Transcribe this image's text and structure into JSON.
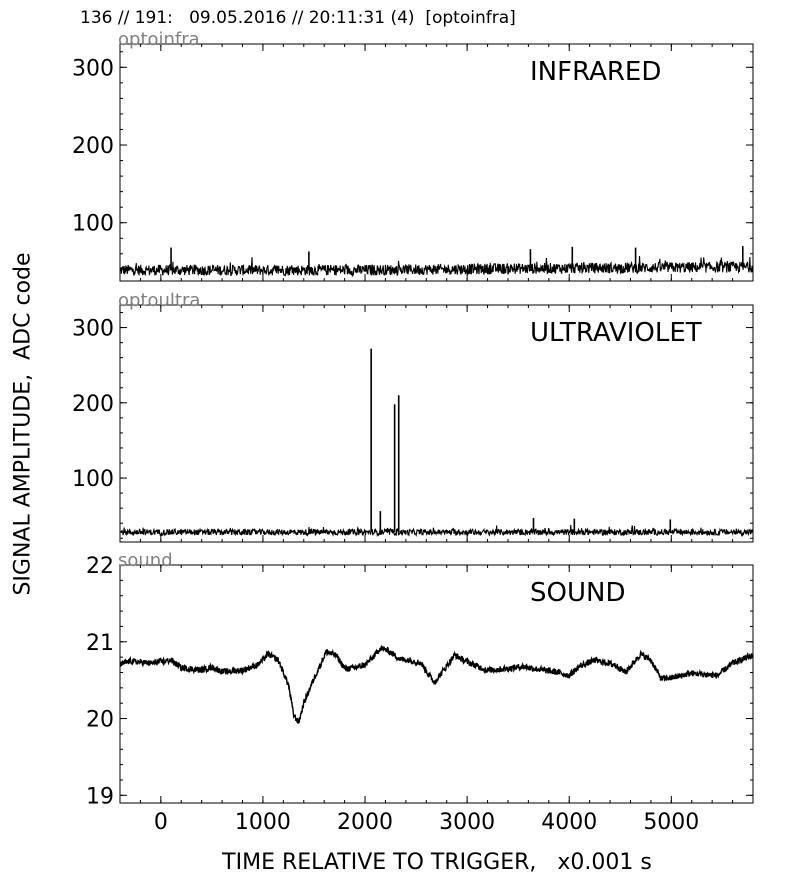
{
  "header": {
    "text": "136 // 191:   09.05.2016 // 20:11:31 (4)  [optoinfra]"
  },
  "figure": {
    "ylabel": "SIGNAL AMPLITUDE,  ADC code",
    "xlabel": "TIME RELATIVE TO TRIGGER,   x0.001 s"
  },
  "chart_data": [
    {
      "type": "line",
      "source_label": "optoinfra",
      "title": "INFRARED",
      "xlim": [
        -400,
        5800
      ],
      "ylim": [
        25,
        330
      ],
      "xticks": [
        0,
        1000,
        2000,
        3000,
        4000,
        5000
      ],
      "yticks": [
        100,
        200,
        300
      ],
      "show_xtick_labels": false,
      "series": [
        {
          "kind": "noise",
          "baseline": [
            [
              -400,
              39
            ],
            [
              2000,
              39
            ],
            [
              3500,
              41
            ],
            [
              5800,
              43
            ]
          ],
          "amplitude": 7,
          "spikes": [
            [
              100,
              68
            ],
            [
              1450,
              63
            ],
            [
              3620,
              66
            ],
            [
              4030,
              69
            ],
            [
              4650,
              68
            ],
            [
              5700,
              70
            ]
          ]
        }
      ]
    },
    {
      "type": "line",
      "source_label": "optoultra",
      "title": "ULTRAVIOLET",
      "xlim": [
        -400,
        5800
      ],
      "ylim": [
        15,
        330
      ],
      "xticks": [
        0,
        1000,
        2000,
        3000,
        4000,
        5000
      ],
      "yticks": [
        100,
        200,
        300
      ],
      "show_xtick_labels": false,
      "series": [
        {
          "kind": "noise",
          "baseline": [
            [
              -400,
              28
            ],
            [
              5800,
              28
            ]
          ],
          "amplitude": 4,
          "spikes": [
            [
              2060,
              272
            ],
            [
              2150,
              56
            ],
            [
              2290,
              198
            ],
            [
              2330,
              210
            ],
            [
              3650,
              47
            ],
            [
              4050,
              46
            ],
            [
              4990,
              45
            ]
          ]
        }
      ]
    },
    {
      "type": "line",
      "source_label": "sound",
      "title": "SOUND",
      "xlim": [
        -400,
        5800
      ],
      "ylim": [
        18.9,
        22
      ],
      "xticks": [
        0,
        1000,
        2000,
        3000,
        4000,
        5000
      ],
      "yticks": [
        19,
        20,
        21,
        22
      ],
      "show_xtick_labels": true,
      "series": [
        {
          "kind": "smooth",
          "amplitude": 0.04,
          "points": [
            [
              -400,
              20.7
            ],
            [
              -300,
              20.75
            ],
            [
              -100,
              20.72
            ],
            [
              100,
              20.76
            ],
            [
              200,
              20.66
            ],
            [
              400,
              20.63
            ],
            [
              500,
              20.67
            ],
            [
              600,
              20.61
            ],
            [
              800,
              20.63
            ],
            [
              950,
              20.7
            ],
            [
              1050,
              20.84
            ],
            [
              1150,
              20.76
            ],
            [
              1250,
              20.44
            ],
            [
              1300,
              20.05
            ],
            [
              1350,
              19.95
            ],
            [
              1400,
              20.2
            ],
            [
              1500,
              20.52
            ],
            [
              1620,
              20.87
            ],
            [
              1720,
              20.82
            ],
            [
              1800,
              20.65
            ],
            [
              1900,
              20.66
            ],
            [
              2000,
              20.7
            ],
            [
              2080,
              20.8
            ],
            [
              2150,
              20.92
            ],
            [
              2230,
              20.88
            ],
            [
              2350,
              20.77
            ],
            [
              2450,
              20.76
            ],
            [
              2550,
              20.72
            ],
            [
              2620,
              20.58
            ],
            [
              2680,
              20.47
            ],
            [
              2780,
              20.65
            ],
            [
              2880,
              20.83
            ],
            [
              2950,
              20.77
            ],
            [
              3100,
              20.68
            ],
            [
              3200,
              20.63
            ],
            [
              3400,
              20.65
            ],
            [
              3550,
              20.68
            ],
            [
              3700,
              20.64
            ],
            [
              3900,
              20.6
            ],
            [
              4000,
              20.56
            ],
            [
              4100,
              20.68
            ],
            [
              4250,
              20.76
            ],
            [
              4450,
              20.7
            ],
            [
              4550,
              20.6
            ],
            [
              4700,
              20.84
            ],
            [
              4800,
              20.76
            ],
            [
              4900,
              20.52
            ],
            [
              5000,
              20.53
            ],
            [
              5200,
              20.59
            ],
            [
              5450,
              20.56
            ],
            [
              5600,
              20.72
            ],
            [
              5750,
              20.8
            ],
            [
              5800,
              20.82
            ]
          ]
        }
      ]
    }
  ]
}
